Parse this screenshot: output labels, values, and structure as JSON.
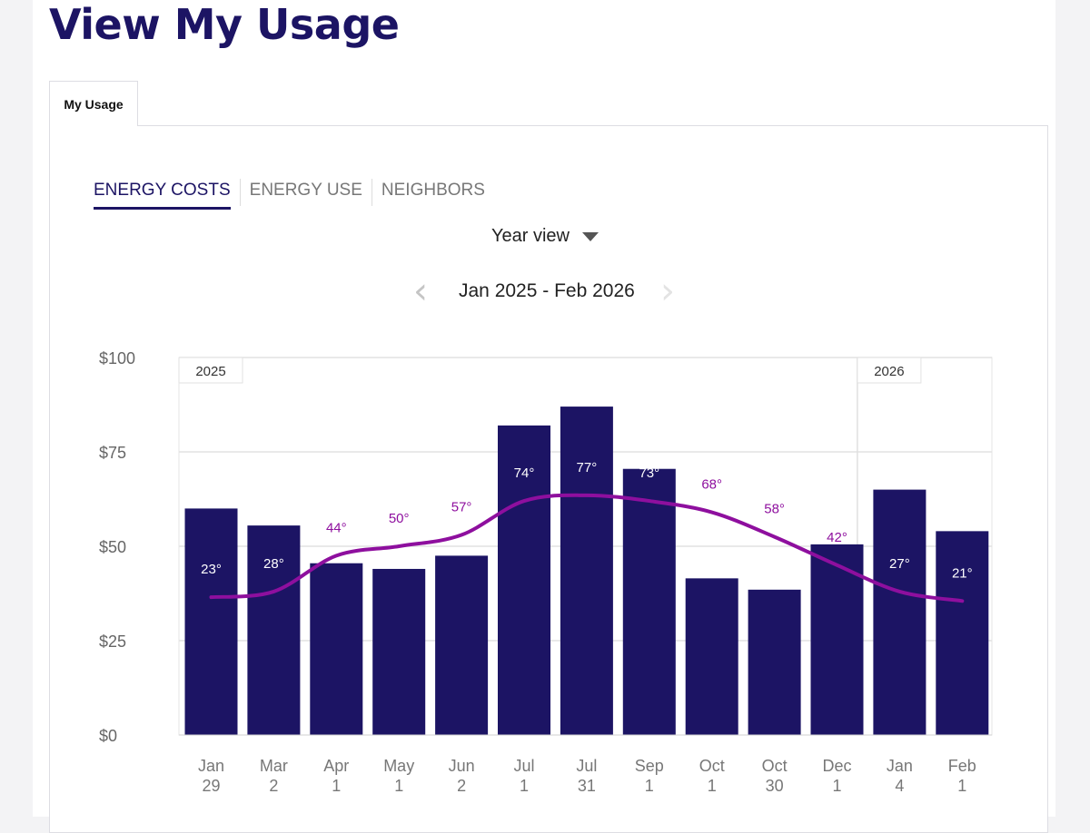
{
  "page": {
    "title": "View My Usage"
  },
  "tabs": {
    "my_usage": "My Usage"
  },
  "subtabs": [
    "ENERGY COSTS",
    "ENERGY USE",
    "NEIGHBORS"
  ],
  "view_select": {
    "value": "Year view"
  },
  "range": {
    "label": "Jan 2025 - Feb 2026"
  },
  "icons": {
    "prev": "chevron-left-icon",
    "next": "chevron-right-icon",
    "dropdown": "caret-down-icon"
  },
  "colors": {
    "bar": "#1c1464",
    "temp_line": "#8e0f9e",
    "title": "#1c1464"
  },
  "chart_data": {
    "type": "bar",
    "categories": [
      [
        "Jan",
        "29"
      ],
      [
        "Mar",
        "2"
      ],
      [
        "Apr",
        "1"
      ],
      [
        "May",
        "1"
      ],
      [
        "Jun",
        "2"
      ],
      [
        "Jul",
        "1"
      ],
      [
        "Jul",
        "31"
      ],
      [
        "Sep",
        "1"
      ],
      [
        "Oct",
        "1"
      ],
      [
        "Oct",
        "30"
      ],
      [
        "Dec",
        "1"
      ],
      [
        "Jan",
        "4"
      ],
      [
        "Feb",
        "1"
      ]
    ],
    "series": [
      {
        "values": [
          60,
          55.5,
          45.5,
          44,
          47.5,
          82,
          87,
          70.5,
          41.5,
          38.5,
          50.5,
          65,
          54
        ]
      }
    ],
    "temperatures": [
      "23°",
      "28°",
      "44°",
      "50°",
      "57°",
      "74°",
      "77°",
      "73°",
      "68°",
      "58°",
      "42°",
      "27°",
      "21°"
    ],
    "temp_line_values": [
      36.5,
      38,
      47.5,
      50,
      53,
      62,
      63.5,
      62,
      59,
      52.5,
      45,
      38,
      35.5
    ],
    "year_labels": [
      {
        "label": "2025",
        "start": 0
      },
      {
        "label": "2026",
        "start": 11
      }
    ],
    "yticks": [
      "$0",
      "$25",
      "$50",
      "$75",
      "$100"
    ],
    "ytick_values": [
      0,
      25,
      50,
      75,
      100
    ],
    "ylim": [
      0,
      100
    ],
    "grid": true
  }
}
